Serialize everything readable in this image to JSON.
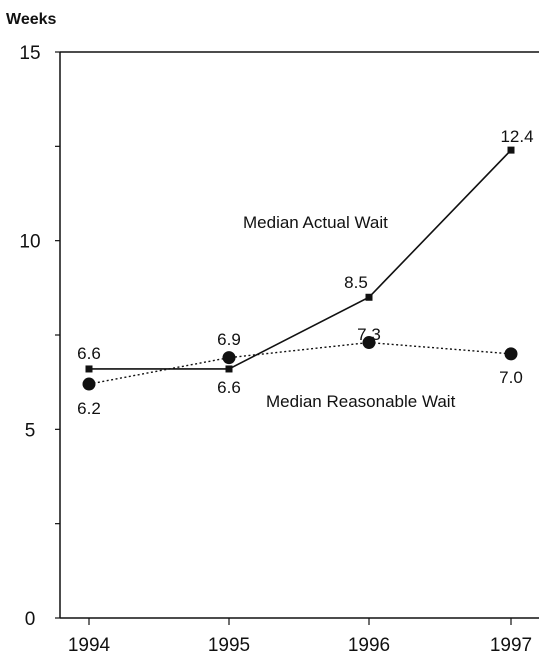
{
  "chart_data": {
    "type": "line",
    "ylabel": "Weeks",
    "ylim": [
      0,
      15
    ],
    "y_ticks": [
      "0",
      "5",
      "10",
      "15"
    ],
    "categories": [
      "1994",
      "1995",
      "1996",
      "1997"
    ],
    "series": [
      {
        "name": "Median Actual Wait",
        "values": [
          6.6,
          6.6,
          8.5,
          12.4
        ],
        "value_labels": [
          "6.6",
          "6.6",
          "8.5",
          "12.4"
        ],
        "line_style": "solid",
        "marker": "square"
      },
      {
        "name": "Median Reasonable Wait",
        "values": [
          6.2,
          6.9,
          7.3,
          7.0
        ],
        "value_labels": [
          "6.2",
          "6.9",
          "7.3",
          "7.0"
        ],
        "line_style": "dotted",
        "marker": "circle"
      }
    ],
    "grid": false,
    "legend": "inline labels"
  }
}
